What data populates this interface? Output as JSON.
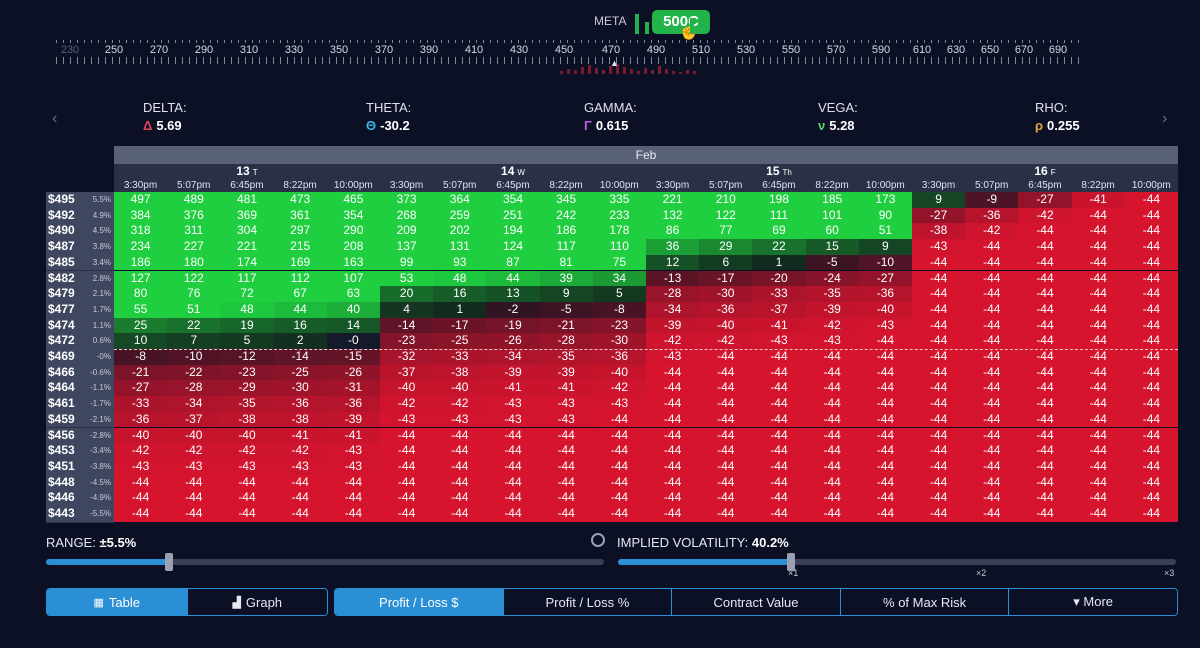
{
  "ticker": "META",
  "selected_strike": "500C",
  "strike_ruler": {
    "labels": [
      "230",
      "250",
      "270",
      "290",
      "310",
      "330",
      "350",
      "370",
      "390",
      "410",
      "430",
      "450",
      "470",
      "490",
      "510",
      "530",
      "550",
      "570",
      "590",
      "610",
      "630",
      "650",
      "670",
      "690"
    ]
  },
  "greeks": [
    {
      "name": "DELTA:",
      "symbol": "Δ",
      "value": "5.69",
      "color": "#e0435b"
    },
    {
      "name": "THETA:",
      "symbol": "Θ",
      "value": "-30.2",
      "color": "#38b6e8"
    },
    {
      "name": "GAMMA:",
      "symbol": "Γ",
      "value": "0.615",
      "color": "#c15ae3"
    },
    {
      "name": "VEGA:",
      "symbol": "ν",
      "value": "5.28",
      "color": "#5ad66a"
    },
    {
      "name": "RHO:",
      "symbol": "ρ",
      "value": "0.255",
      "color": "#e3a93a"
    }
  ],
  "table": {
    "month": "Feb",
    "days": [
      {
        "day": "13",
        "dow": "T",
        "times": [
          "3:30pm",
          "5:07pm",
          "6:45pm",
          "8:22pm",
          "10:00pm"
        ]
      },
      {
        "day": "14",
        "dow": "W",
        "times": [
          "3:30pm",
          "5:07pm",
          "6:45pm",
          "8:22pm",
          "10:00pm"
        ]
      },
      {
        "day": "15",
        "dow": "Th",
        "times": [
          "3:30pm",
          "5:07pm",
          "6:45pm",
          "8:22pm",
          "10:00pm"
        ]
      },
      {
        "day": "16",
        "dow": "F",
        "times": [
          "3:30pm",
          "5:07pm",
          "6:45pm",
          "8:22pm",
          "10:00pm"
        ]
      }
    ],
    "rows": [
      {
        "price": "$495",
        "pct": "5.5%",
        "values": [
          497,
          489,
          481,
          473,
          465,
          373,
          364,
          354,
          345,
          335,
          221,
          210,
          198,
          185,
          173,
          9,
          -9,
          -27,
          -41,
          -44
        ]
      },
      {
        "price": "$492",
        "pct": "4.9%",
        "values": [
          384,
          376,
          369,
          361,
          354,
          268,
          259,
          251,
          242,
          233,
          132,
          122,
          111,
          101,
          90,
          -27,
          -36,
          -42,
          -44,
          -44
        ]
      },
      {
        "price": "$490",
        "pct": "4.5%",
        "values": [
          318,
          311,
          304,
          297,
          290,
          209,
          202,
          194,
          186,
          178,
          86,
          77,
          69,
          60,
          51,
          -38,
          -42,
          -44,
          -44,
          -44
        ]
      },
      {
        "price": "$487",
        "pct": "3.8%",
        "values": [
          234,
          227,
          221,
          215,
          208,
          137,
          131,
          124,
          117,
          110,
          36,
          29,
          22,
          15,
          9,
          -43,
          -44,
          -44,
          -44,
          -44
        ]
      },
      {
        "price": "$485",
        "pct": "3.4%",
        "values": [
          186,
          180,
          174,
          169,
          163,
          99,
          93,
          87,
          81,
          75,
          12,
          6,
          1,
          -5,
          -10,
          -44,
          -44,
          -44,
          -44,
          -44
        ]
      },
      {
        "price": "$482",
        "pct": "2.8%",
        "values": [
          127,
          122,
          117,
          112,
          107,
          53,
          48,
          44,
          39,
          34,
          -13,
          -17,
          -20,
          -24,
          -27,
          -44,
          -44,
          -44,
          -44,
          -44
        ]
      },
      {
        "price": "$479",
        "pct": "2.1%",
        "values": [
          80,
          76,
          72,
          67,
          63,
          20,
          16,
          13,
          9,
          5,
          -28,
          -30,
          -33,
          -35,
          -36,
          -44,
          -44,
          -44,
          -44,
          -44
        ]
      },
      {
        "price": "$477",
        "pct": "1.7%",
        "values": [
          55,
          51,
          48,
          44,
          40,
          4,
          1,
          -2,
          -5,
          -8,
          -34,
          -36,
          -37,
          -39,
          -40,
          -44,
          -44,
          -44,
          -44,
          -44
        ]
      },
      {
        "price": "$474",
        "pct": "1.1%",
        "values": [
          25,
          22,
          19,
          16,
          14,
          -14,
          -17,
          -19,
          -21,
          -23,
          -39,
          -40,
          -41,
          -42,
          -43,
          -44,
          -44,
          -44,
          -44,
          -44
        ]
      },
      {
        "price": "$472",
        "pct": "0.6%",
        "values": [
          10,
          7,
          5,
          2,
          "-0",
          -23,
          -25,
          -26,
          -28,
          -30,
          -42,
          -42,
          -43,
          -43,
          -44,
          -44,
          -44,
          -44,
          -44,
          -44
        ]
      },
      {
        "price": "$469",
        "pct": "-0%",
        "values": [
          -8,
          -10,
          -12,
          -14,
          -15,
          -32,
          -33,
          -34,
          -35,
          -36,
          -43,
          -44,
          -44,
          -44,
          -44,
          -44,
          -44,
          -44,
          -44,
          -44
        ]
      },
      {
        "price": "$466",
        "pct": "-0.6%",
        "values": [
          -21,
          -22,
          -23,
          -25,
          -26,
          -37,
          -38,
          -39,
          -39,
          -40,
          -44,
          -44,
          -44,
          -44,
          -44,
          -44,
          -44,
          -44,
          -44,
          -44
        ]
      },
      {
        "price": "$464",
        "pct": "-1.1%",
        "values": [
          -27,
          -28,
          -29,
          -30,
          -31,
          -40,
          -40,
          -41,
          -41,
          -42,
          -44,
          -44,
          -44,
          -44,
          -44,
          -44,
          -44,
          -44,
          -44,
          -44
        ]
      },
      {
        "price": "$461",
        "pct": "-1.7%",
        "values": [
          -33,
          -34,
          -35,
          -36,
          -36,
          -42,
          -42,
          -43,
          -43,
          -43,
          -44,
          -44,
          -44,
          -44,
          -44,
          -44,
          -44,
          -44,
          -44,
          -44
        ]
      },
      {
        "price": "$459",
        "pct": "-2.1%",
        "values": [
          -36,
          -37,
          -38,
          -38,
          -39,
          -43,
          -43,
          -43,
          -43,
          -44,
          -44,
          -44,
          -44,
          -44,
          -44,
          -44,
          -44,
          -44,
          -44,
          -44
        ]
      },
      {
        "price": "$456",
        "pct": "-2.8%",
        "values": [
          -40,
          -40,
          -40,
          -41,
          -41,
          -44,
          -44,
          -44,
          -44,
          -44,
          -44,
          -44,
          -44,
          -44,
          -44,
          -44,
          -44,
          -44,
          -44,
          -44
        ]
      },
      {
        "price": "$453",
        "pct": "-3.4%",
        "values": [
          -42,
          -42,
          -42,
          -42,
          -43,
          -44,
          -44,
          -44,
          -44,
          -44,
          -44,
          -44,
          -44,
          -44,
          -44,
          -44,
          -44,
          -44,
          -44,
          -44
        ]
      },
      {
        "price": "$451",
        "pct": "-3.8%",
        "values": [
          -43,
          -43,
          -43,
          -43,
          -43,
          -44,
          -44,
          -44,
          -44,
          -44,
          -44,
          -44,
          -44,
          -44,
          -44,
          -44,
          -44,
          -44,
          -44,
          -44
        ]
      },
      {
        "price": "$448",
        "pct": "-4.5%",
        "values": [
          -44,
          -44,
          -44,
          -44,
          -44,
          -44,
          -44,
          -44,
          -44,
          -44,
          -44,
          -44,
          -44,
          -44,
          -44,
          -44,
          -44,
          -44,
          -44,
          -44
        ]
      },
      {
        "price": "$446",
        "pct": "-4.9%",
        "values": [
          -44,
          -44,
          -44,
          -44,
          -44,
          -44,
          -44,
          -44,
          -44,
          -44,
          -44,
          -44,
          -44,
          -44,
          -44,
          -44,
          -44,
          -44,
          -44,
          -44
        ]
      },
      {
        "price": "$443",
        "pct": "-5.5%",
        "values": [
          -44,
          -44,
          -44,
          -44,
          -44,
          -44,
          -44,
          -44,
          -44,
          -44,
          -44,
          -44,
          -44,
          -44,
          -44,
          -44,
          -44,
          -44,
          -44,
          -44
        ]
      }
    ]
  },
  "range": {
    "label": "RANGE:",
    "value": "±5.5%",
    "level_fraction": 0.22
  },
  "implied_volatility": {
    "label": "IMPLIED VOLATILITY:",
    "value": "40.2%",
    "ticks": [
      "×1",
      "×2",
      "×3"
    ],
    "level_fraction": 0.31
  },
  "view_buttons": [
    {
      "label": "Table",
      "icon": "table-icon",
      "active": true
    },
    {
      "label": "Graph",
      "icon": "graph-icon",
      "active": false
    }
  ],
  "metric_buttons": [
    {
      "label": "Profit / Loss $",
      "active": true
    },
    {
      "label": "Profit / Loss %",
      "active": false
    },
    {
      "label": "Contract Value",
      "active": false
    },
    {
      "label": "% of Max Risk",
      "active": false
    },
    {
      "label": "▾ More",
      "active": false
    }
  ],
  "colors": {
    "profit": "#1fcf3f",
    "loss": "#d6142e",
    "accent": "#2a8fd4"
  }
}
